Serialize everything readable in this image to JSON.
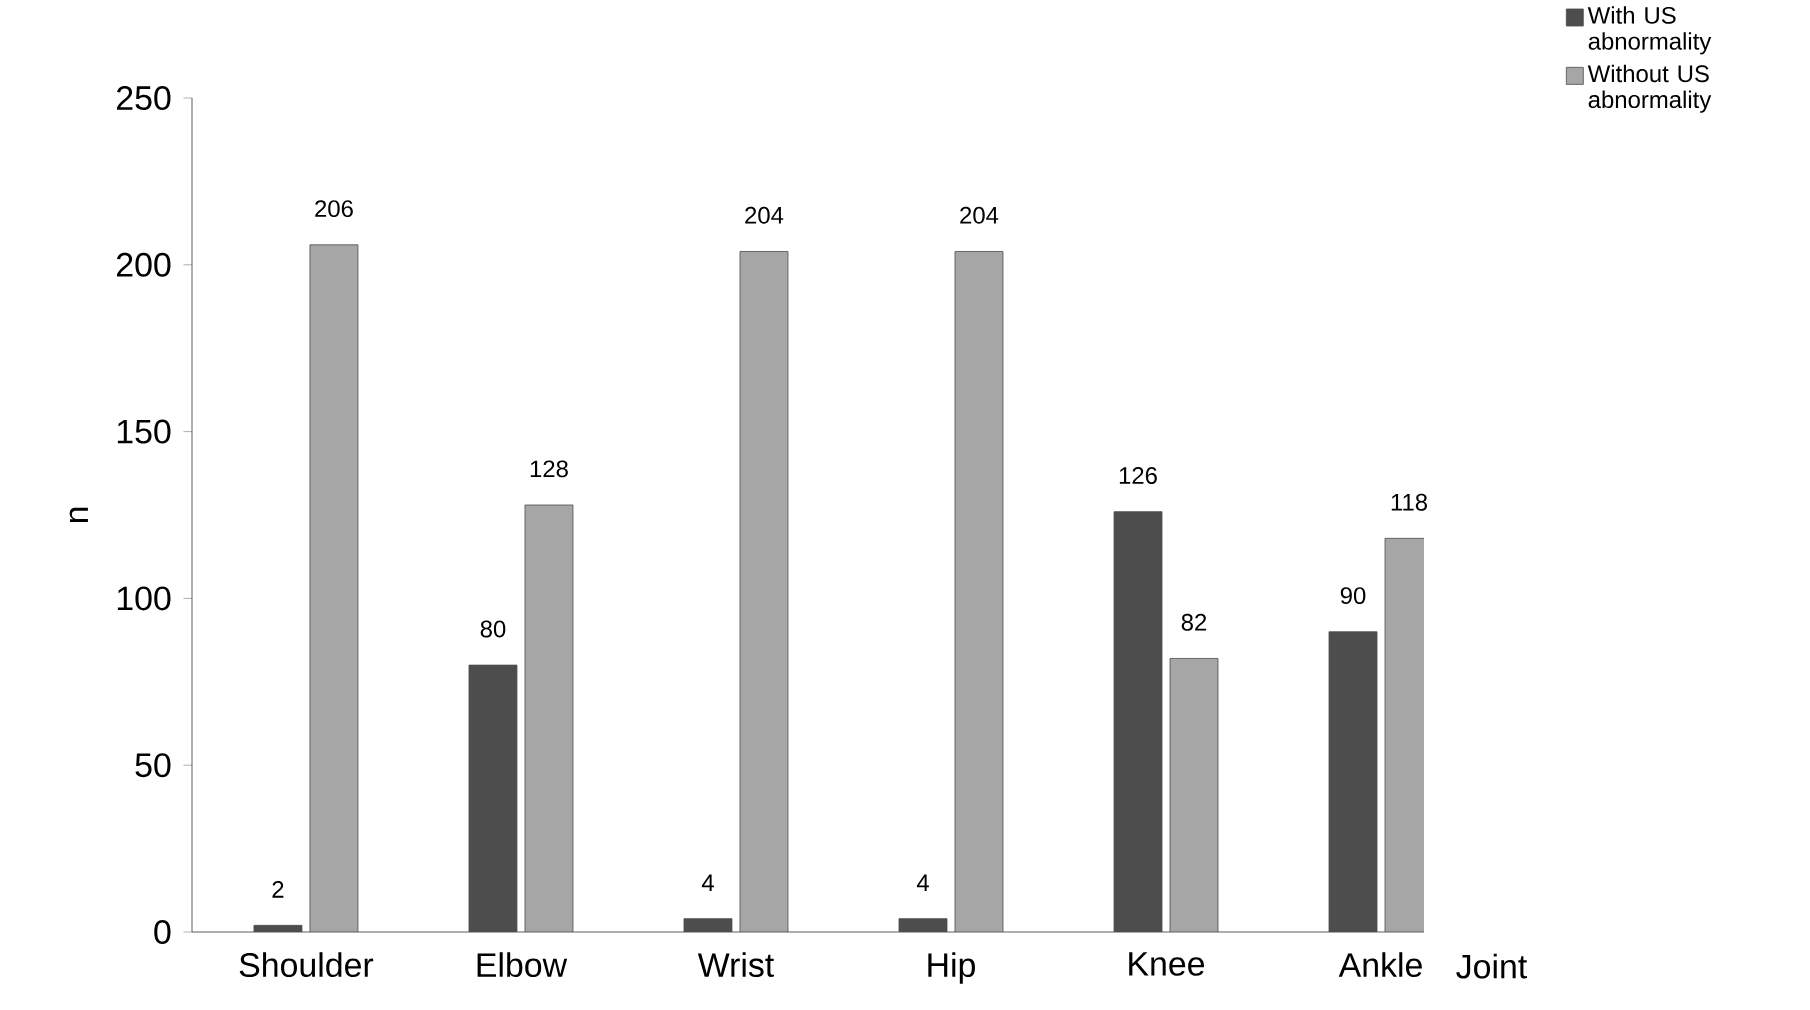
{
  "chart_data": {
    "type": "bar",
    "xlabel": "Joint",
    "ylabel": "n",
    "categories": [
      "Shoulder",
      "Elbow",
      "Wrist",
      "Hip",
      "Knee",
      "Ankle"
    ],
    "series": [
      {
        "name": "With US abnormality",
        "color": "#4d4d4d",
        "values": [
          2,
          80,
          4,
          4,
          126,
          90
        ]
      },
      {
        "name": "Without US abnormality",
        "color": "#a6a6a6",
        "values": [
          206,
          128,
          204,
          204,
          82,
          118
        ]
      }
    ],
    "ylim": [
      0,
      250
    ],
    "yticks": [
      0,
      50,
      100,
      150,
      200,
      250
    ],
    "data_labels": true,
    "legend": "top right",
    "grid": false
  }
}
